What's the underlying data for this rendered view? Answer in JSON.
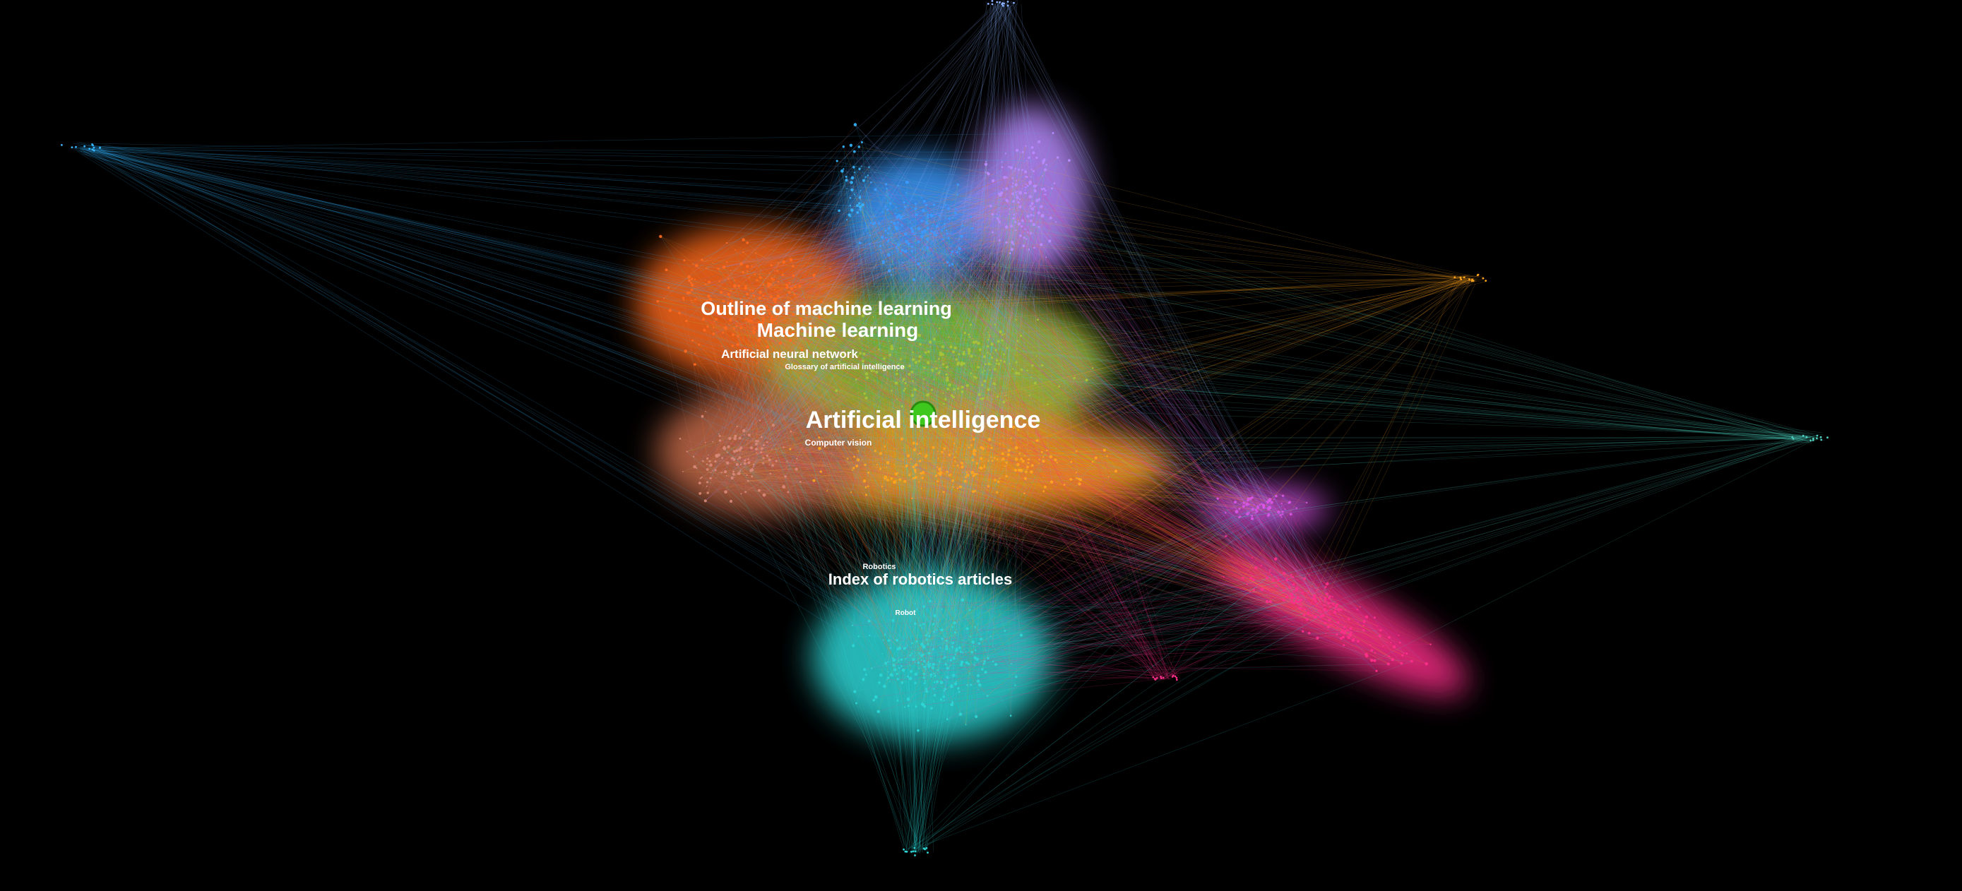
{
  "graph": {
    "labels": {
      "artificial_intelligence": "Artificial intelligence",
      "outline_of_machine_learning": "Outline of machine learning",
      "machine_learning": "Machine learning",
      "artificial_neural_network": "Artificial neural network",
      "glossary_of_ai": "Glossary of artificial intelligence",
      "computer_vision": "Computer vision",
      "robotics": "Robotics",
      "index_of_robotics_articles": "Index of robotics articles",
      "robot": "Robot"
    },
    "highlighted_node_color": "#3ec81e",
    "background_color": "#000000",
    "clusters": [
      {
        "name": "orange",
        "color": "#ff6a1f"
      },
      {
        "name": "blue",
        "color": "#3d9bff"
      },
      {
        "name": "lavender",
        "color": "#b98cff"
      },
      {
        "name": "olive",
        "color": "#a8c43a"
      },
      {
        "name": "amber",
        "color": "#ffa51f"
      },
      {
        "name": "cyan",
        "color": "#2ed6d6"
      },
      {
        "name": "pink",
        "color": "#ff2f8a"
      },
      {
        "name": "magenta",
        "color": "#d957e8"
      },
      {
        "name": "rose",
        "color": "#d98a7a"
      },
      {
        "name": "sky",
        "color": "#36b6ff"
      }
    ]
  }
}
